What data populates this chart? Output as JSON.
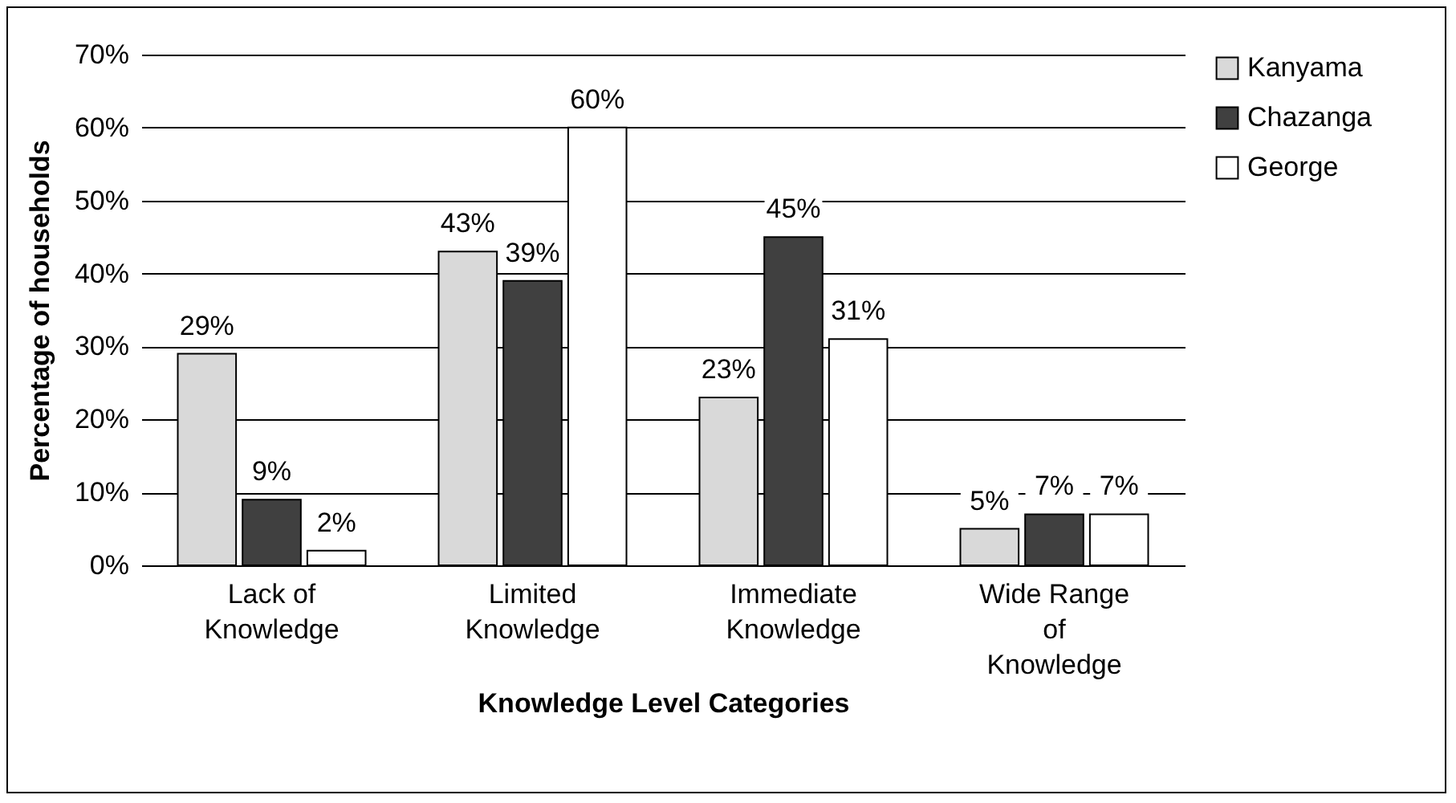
{
  "chart_data": {
    "type": "bar",
    "xlabel": "Knowledge Level Categories",
    "ylabel": "Percentage of households",
    "categories": [
      "Lack of Knowledge",
      "Limited Knowledge",
      "Immediate Knowledge",
      "Wide Range of Knowledge"
    ],
    "series": [
      {
        "name": "Kanyama",
        "color": "#d9d9d9",
        "values": [
          29,
          43,
          23,
          5
        ],
        "value_labels": [
          "29%",
          "43%",
          "23%",
          "5%"
        ]
      },
      {
        "name": "Chazanga",
        "color": "#404040",
        "values": [
          9,
          39,
          45,
          7
        ],
        "value_labels": [
          "9%",
          "39%",
          "45%",
          "7%"
        ]
      },
      {
        "name": "George",
        "color": "#ffffff",
        "values": [
          2,
          60,
          31,
          7
        ],
        "value_labels": [
          "2%",
          "60%",
          "31%",
          "7%"
        ]
      }
    ],
    "ylim": [
      0,
      70
    ],
    "yticks": [
      {
        "value": 0,
        "label": "0%"
      },
      {
        "value": 10,
        "label": "10%"
      },
      {
        "value": 20,
        "label": "20%"
      },
      {
        "value": 30,
        "label": "30%"
      },
      {
        "value": 40,
        "label": "40%"
      },
      {
        "value": 50,
        "label": "50%"
      },
      {
        "value": 60,
        "label": "60%"
      },
      {
        "value": 70,
        "label": "70%"
      }
    ],
    "grid": "y",
    "legend": "right"
  }
}
